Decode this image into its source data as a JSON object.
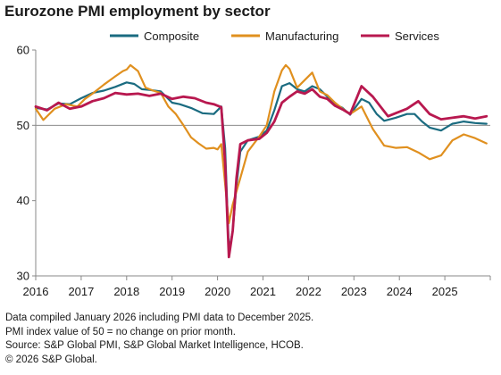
{
  "title": "Eurozone PMI employment by sector",
  "notes": [
    "Data compiled January 2026 including PMI data to December 2025.",
    "PMI index value of 50 = no change on prior month.",
    "Source: S&P Global PMI, S&P Global Market Intelligence, HCOB.",
    "© 2026 S&P Global."
  ],
  "chart_data": {
    "type": "line",
    "title": "Eurozone PMI employment by sector",
    "xlabel": "",
    "ylabel": "",
    "ylim": [
      30,
      60
    ],
    "yticks": [
      "30",
      "40",
      "50",
      "60"
    ],
    "xticks": [
      "2016",
      "2017",
      "2018",
      "2019",
      "2020",
      "2021",
      "2022",
      "2023",
      "2024",
      "2025"
    ],
    "xlim": [
      "2016-01",
      "2025-12"
    ],
    "reference_line": 50,
    "grid": false,
    "legend_position": "top",
    "series": [
      {
        "name": "Composite",
        "color": "#1a6b80",
        "points": [
          [
            "2016-01",
            52.3
          ],
          [
            "2016-04",
            52.1
          ],
          [
            "2016-07",
            52.9
          ],
          [
            "2016-10",
            52.8
          ],
          [
            "2017-01",
            53.6
          ],
          [
            "2017-04",
            54.3
          ],
          [
            "2017-07",
            54.6
          ],
          [
            "2017-10",
            55.1
          ],
          [
            "2018-01",
            55.7
          ],
          [
            "2018-03",
            55.5
          ],
          [
            "2018-05",
            54.8
          ],
          [
            "2018-07",
            54.7
          ],
          [
            "2018-10",
            54.5
          ],
          [
            "2019-01",
            53.0
          ],
          [
            "2019-03",
            52.8
          ],
          [
            "2019-06",
            52.3
          ],
          [
            "2019-09",
            51.6
          ],
          [
            "2019-12",
            51.5
          ],
          [
            "2020-02",
            52.5
          ],
          [
            "2020-03",
            47.0
          ],
          [
            "2020-04",
            33.4
          ],
          [
            "2020-05",
            36.0
          ],
          [
            "2020-06",
            42.0
          ],
          [
            "2020-07",
            46.5
          ],
          [
            "2020-09",
            48.0
          ],
          [
            "2020-12",
            48.5
          ],
          [
            "2021-02",
            49.3
          ],
          [
            "2021-04",
            52.0
          ],
          [
            "2021-06",
            55.2
          ],
          [
            "2021-08",
            55.6
          ],
          [
            "2021-10",
            54.8
          ],
          [
            "2021-12",
            54.5
          ],
          [
            "2022-02",
            55.2
          ],
          [
            "2022-04",
            54.8
          ],
          [
            "2022-06",
            53.8
          ],
          [
            "2022-08",
            52.8
          ],
          [
            "2022-10",
            52.3
          ],
          [
            "2022-12",
            51.4
          ],
          [
            "2023-03",
            53.5
          ],
          [
            "2023-05",
            53.0
          ],
          [
            "2023-07",
            51.5
          ],
          [
            "2023-09",
            50.6
          ],
          [
            "2023-12",
            51.0
          ],
          [
            "2024-03",
            51.5
          ],
          [
            "2024-05",
            51.5
          ],
          [
            "2024-07",
            50.5
          ],
          [
            "2024-09",
            49.7
          ],
          [
            "2024-12",
            49.3
          ],
          [
            "2025-03",
            50.2
          ],
          [
            "2025-06",
            50.5
          ],
          [
            "2025-09",
            50.3
          ],
          [
            "2025-12",
            50.2
          ]
        ]
      },
      {
        "name": "Manufacturing",
        "color": "#e0901f",
        "points": [
          [
            "2016-01",
            52.2
          ],
          [
            "2016-03",
            50.7
          ],
          [
            "2016-06",
            52.2
          ],
          [
            "2016-09",
            52.8
          ],
          [
            "2016-12",
            52.5
          ],
          [
            "2017-02",
            53.5
          ],
          [
            "2017-04",
            54.2
          ],
          [
            "2017-07",
            55.4
          ],
          [
            "2017-10",
            56.5
          ],
          [
            "2017-12",
            57.2
          ],
          [
            "2018-01",
            57.4
          ],
          [
            "2018-02",
            58.0
          ],
          [
            "2018-04",
            57.2
          ],
          [
            "2018-06",
            55.0
          ],
          [
            "2018-08",
            54.6
          ],
          [
            "2018-10",
            54.3
          ],
          [
            "2018-12",
            52.5
          ],
          [
            "2019-02",
            51.5
          ],
          [
            "2019-04",
            50.0
          ],
          [
            "2019-06",
            48.4
          ],
          [
            "2019-08",
            47.6
          ],
          [
            "2019-10",
            46.9
          ],
          [
            "2019-12",
            47.0
          ],
          [
            "2020-01",
            46.8
          ],
          [
            "2020-02",
            47.5
          ],
          [
            "2020-04",
            37.0
          ],
          [
            "2020-05",
            39.5
          ],
          [
            "2020-07",
            43.0
          ],
          [
            "2020-09",
            46.5
          ],
          [
            "2020-12",
            48.5
          ],
          [
            "2021-02",
            50.0
          ],
          [
            "2021-04",
            54.5
          ],
          [
            "2021-06",
            57.3
          ],
          [
            "2021-07",
            58.0
          ],
          [
            "2021-08",
            57.5
          ],
          [
            "2021-10",
            55.0
          ],
          [
            "2021-12",
            56.0
          ],
          [
            "2022-02",
            57.0
          ],
          [
            "2022-04",
            54.5
          ],
          [
            "2022-06",
            54.0
          ],
          [
            "2022-08",
            53.0
          ],
          [
            "2022-10",
            52.2
          ],
          [
            "2022-12",
            51.5
          ],
          [
            "2023-03",
            52.5
          ],
          [
            "2023-06",
            49.5
          ],
          [
            "2023-09",
            47.3
          ],
          [
            "2023-12",
            47.0
          ],
          [
            "2024-03",
            47.1
          ],
          [
            "2024-06",
            46.4
          ],
          [
            "2024-09",
            45.5
          ],
          [
            "2024-12",
            46.0
          ],
          [
            "2025-03",
            48.0
          ],
          [
            "2025-06",
            48.8
          ],
          [
            "2025-09",
            48.3
          ],
          [
            "2025-12",
            47.6
          ]
        ]
      },
      {
        "name": "Services",
        "color": "#b8184f",
        "points": [
          [
            "2016-01",
            52.5
          ],
          [
            "2016-04",
            52.0
          ],
          [
            "2016-07",
            53.0
          ],
          [
            "2016-10",
            52.2
          ],
          [
            "2017-01",
            52.5
          ],
          [
            "2017-04",
            53.2
          ],
          [
            "2017-07",
            53.6
          ],
          [
            "2017-10",
            54.3
          ],
          [
            "2018-01",
            54.1
          ],
          [
            "2018-04",
            54.2
          ],
          [
            "2018-07",
            53.9
          ],
          [
            "2018-10",
            54.2
          ],
          [
            "2019-01",
            53.5
          ],
          [
            "2019-04",
            53.8
          ],
          [
            "2019-07",
            53.6
          ],
          [
            "2019-10",
            53.0
          ],
          [
            "2019-12",
            52.8
          ],
          [
            "2020-02",
            52.4
          ],
          [
            "2020-03",
            45.0
          ],
          [
            "2020-04",
            32.5
          ],
          [
            "2020-05",
            36.0
          ],
          [
            "2020-06",
            43.0
          ],
          [
            "2020-07",
            47.5
          ],
          [
            "2020-09",
            48.0
          ],
          [
            "2020-12",
            48.2
          ],
          [
            "2021-02",
            49.0
          ],
          [
            "2021-04",
            50.5
          ],
          [
            "2021-06",
            53.0
          ],
          [
            "2021-08",
            53.8
          ],
          [
            "2021-10",
            54.5
          ],
          [
            "2021-12",
            54.2
          ],
          [
            "2022-02",
            54.8
          ],
          [
            "2022-04",
            53.8
          ],
          [
            "2022-06",
            53.5
          ],
          [
            "2022-08",
            52.6
          ],
          [
            "2022-10",
            52.1
          ],
          [
            "2022-12",
            51.5
          ],
          [
            "2023-03",
            55.2
          ],
          [
            "2023-06",
            53.8
          ],
          [
            "2023-08",
            52.5
          ],
          [
            "2023-10",
            51.2
          ],
          [
            "2023-12",
            51.6
          ],
          [
            "2024-03",
            52.2
          ],
          [
            "2024-06",
            53.2
          ],
          [
            "2024-09",
            51.5
          ],
          [
            "2024-12",
            50.8
          ],
          [
            "2025-03",
            51.0
          ],
          [
            "2025-06",
            51.2
          ],
          [
            "2025-09",
            50.9
          ],
          [
            "2025-12",
            51.2
          ]
        ]
      }
    ]
  }
}
